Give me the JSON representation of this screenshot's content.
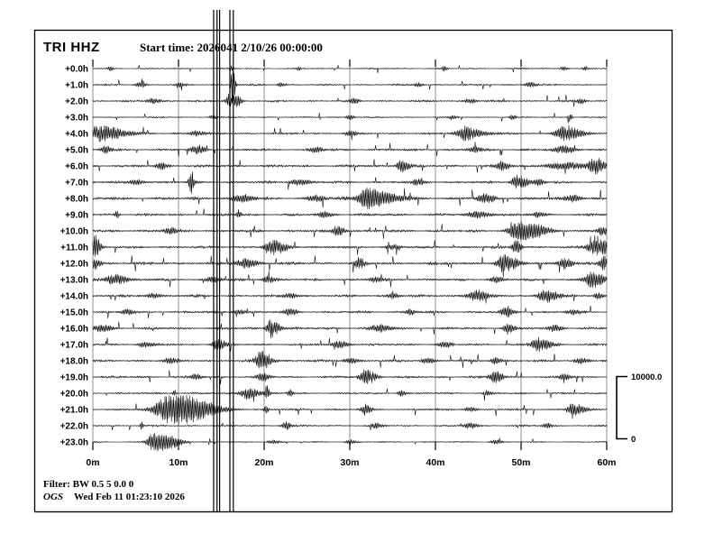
{
  "header": {
    "station_label": "TRI HHZ",
    "start_time_label": "Start time: 2026041 2/10/26 00:00:00"
  },
  "footer": {
    "filter_label": "Filter: BW 0.5 5 0.0 0",
    "agency_label": "OGS",
    "timestamp_label": "Wed Feb 11 01:23:10 2026"
  },
  "colors": {
    "trace": "#000000",
    "grid": "#8f8f8f",
    "frame": "#000000",
    "background": "#ffffff"
  },
  "chart_data": {
    "type": "line",
    "subtype": "helicorder-seismogram",
    "title": "TRI HHZ",
    "start_time": "2026041 2/10/26 00:00:00",
    "x_tick_labels": [
      "0m",
      "10m",
      "20m",
      "30m",
      "40m",
      "50m",
      "60m"
    ],
    "x_tick_positions_minutes": [
      0,
      10,
      20,
      30,
      40,
      50,
      60
    ],
    "x_range_minutes": [
      0,
      60
    ],
    "minutes_per_row": 60,
    "grid": "vertical gray lines every 10 minutes",
    "legend_position": "none",
    "amplitude_scale_bar": {
      "max_label": "10000.0",
      "min_label": "0"
    },
    "clipped_event_lines_minutes": [
      14.1,
      14.5,
      14.8,
      16.0,
      16.4
    ],
    "events_format": "[minute, peak_amplitude_px, gaussian_width_min]",
    "rows": [
      {
        "label": "+0.0h",
        "noise": 0.8,
        "events": [
          [
            2.0,
            2.5,
            0.2
          ],
          [
            16.2,
            3,
            0.15
          ],
          [
            24,
            2,
            0.2
          ],
          [
            41,
            2.5,
            0.2
          ],
          [
            55,
            2.5,
            0.3
          ],
          [
            57.5,
            2.5,
            0.2
          ]
        ]
      },
      {
        "label": "+1.0h",
        "noise": 1.0,
        "events": [
          [
            5.5,
            3,
            0.4
          ],
          [
            10.2,
            2.5,
            0.3
          ],
          [
            16.3,
            22,
            0.12
          ],
          [
            22,
            2.5,
            0.3
          ],
          [
            38,
            2.5,
            0.3
          ],
          [
            51,
            3,
            0.4
          ]
        ]
      },
      {
        "label": "+2.0h",
        "noise": 1.1,
        "events": [
          [
            7,
            3,
            0.5
          ],
          [
            16.1,
            6,
            0.45
          ],
          [
            16.9,
            5,
            0.25
          ],
          [
            30.5,
            3.5,
            0.3
          ],
          [
            44,
            3,
            0.4
          ],
          [
            57,
            3,
            0.3
          ]
        ]
      },
      {
        "label": "+3.0h",
        "noise": 0.85,
        "events": [
          [
            14,
            2.5,
            0.3
          ],
          [
            30,
            3,
            0.3
          ],
          [
            42,
            2.5,
            0.3
          ],
          [
            49,
            3,
            0.25
          ],
          [
            55.7,
            6,
            0.15
          ]
        ]
      },
      {
        "label": "+4.0h",
        "noise": 1.2,
        "events": [
          [
            0.8,
            9,
            1.1
          ],
          [
            12,
            3,
            0.5
          ],
          [
            30,
            3.5,
            0.4
          ],
          [
            43.5,
            8,
            0.8
          ],
          [
            55.0,
            9,
            0.7
          ]
        ]
      },
      {
        "label": "+5.0h",
        "noise": 1.3,
        "events": [
          [
            1.5,
            4,
            0.4
          ],
          [
            12.2,
            5,
            0.5
          ],
          [
            26,
            3,
            0.5
          ],
          [
            44.5,
            3.5,
            0.5
          ],
          [
            55,
            4,
            0.8
          ]
        ]
      },
      {
        "label": "+6.0h",
        "noise": 1.4,
        "events": [
          [
            8,
            3.5,
            0.5
          ],
          [
            36.0,
            8,
            0.35
          ],
          [
            47.8,
            5,
            0.5
          ],
          [
            55,
            4,
            1.5
          ],
          [
            58.5,
            9,
            0.45
          ]
        ]
      },
      {
        "label": "+7.0h",
        "noise": 1.4,
        "events": [
          [
            5,
            3.5,
            0.5
          ],
          [
            11.4,
            14,
            0.15
          ],
          [
            24,
            3.5,
            0.7
          ],
          [
            38,
            3,
            0.5
          ],
          [
            49.5,
            8,
            0.45
          ],
          [
            52,
            4,
            0.4
          ]
        ]
      },
      {
        "label": "+8.0h",
        "noise": 1.6,
        "events": [
          [
            17.5,
            4,
            0.8
          ],
          [
            26,
            3.5,
            0.6
          ],
          [
            31.8,
            8,
            0.5
          ],
          [
            33.2,
            7,
            1.6
          ],
          [
            45.8,
            5,
            0.6
          ],
          [
            56,
            4,
            0.6
          ]
        ]
      },
      {
        "label": "+9.0h",
        "noise": 1.4,
        "events": [
          [
            2.8,
            5,
            0.15
          ],
          [
            17.0,
            5,
            0.18
          ],
          [
            27,
            3,
            0.6
          ],
          [
            45,
            3.5,
            0.9
          ],
          [
            52,
            3,
            0.5
          ]
        ]
      },
      {
        "label": "+10.0h",
        "noise": 1.5,
        "events": [
          [
            9,
            3.5,
            0.5
          ],
          [
            28.6,
            6,
            0.45
          ],
          [
            49.5,
            9,
            0.7
          ],
          [
            51.5,
            6,
            1.0
          ],
          [
            59.5,
            5,
            0.4
          ]
        ]
      },
      {
        "label": "+11.0h",
        "noise": 1.4,
        "events": [
          [
            0.2,
            15,
            0.22
          ],
          [
            21.0,
            8,
            0.6
          ],
          [
            35,
            3,
            0.5
          ],
          [
            49.3,
            9,
            0.25
          ],
          [
            58.8,
            9,
            0.8
          ]
        ]
      },
      {
        "label": "+12.0h",
        "noise": 1.6,
        "events": [
          [
            0.3,
            7,
            0.3
          ],
          [
            17.8,
            5,
            0.8
          ],
          [
            31.0,
            6,
            0.35
          ],
          [
            48.0,
            10,
            0.55
          ],
          [
            55.0,
            7,
            0.5
          ],
          [
            59.6,
            8,
            0.35
          ]
        ]
      },
      {
        "label": "+13.0h",
        "noise": 1.4,
        "events": [
          [
            2.6,
            6,
            0.8
          ],
          [
            14,
            3.5,
            0.5
          ],
          [
            20.5,
            4,
            0.5
          ],
          [
            33,
            3,
            0.5
          ],
          [
            47,
            3.5,
            0.5
          ],
          [
            58.2,
            10,
            0.55
          ]
        ]
      },
      {
        "label": "+14.0h",
        "noise": 1.4,
        "events": [
          [
            7,
            3,
            0.5
          ],
          [
            23,
            3,
            0.5
          ],
          [
            35,
            3.5,
            0.4
          ],
          [
            44.8,
            7,
            0.7
          ],
          [
            52.8,
            8,
            0.55
          ],
          [
            59,
            4,
            0.3
          ]
        ]
      },
      {
        "label": "+15.0h",
        "noise": 1.3,
        "events": [
          [
            4,
            3,
            0.5
          ],
          [
            17,
            3,
            0.5
          ],
          [
            23,
            3.5,
            0.5
          ],
          [
            37,
            3,
            0.4
          ],
          [
            48.3,
            6,
            0.45
          ],
          [
            56,
            3,
            0.5
          ]
        ]
      },
      {
        "label": "+16.0h",
        "noise": 1.4,
        "events": [
          [
            1,
            4,
            0.7
          ],
          [
            20.8,
            11,
            0.35
          ],
          [
            33.5,
            4,
            0.7
          ],
          [
            48.5,
            6,
            0.4
          ],
          [
            54,
            3.5,
            0.5
          ]
        ]
      },
      {
        "label": "+17.0h",
        "noise": 1.3,
        "events": [
          [
            6,
            3,
            0.5
          ],
          [
            14.6,
            7,
            0.45
          ],
          [
            28.8,
            4,
            0.6
          ],
          [
            41,
            3,
            0.5
          ],
          [
            52.0,
            8,
            0.55
          ]
        ]
      },
      {
        "label": "+18.0h",
        "noise": 1.3,
        "events": [
          [
            9,
            3,
            0.5
          ],
          [
            19.6,
            12,
            0.45
          ],
          [
            30,
            3,
            0.5
          ],
          [
            39,
            3.5,
            0.5
          ],
          [
            47,
            3.5,
            0.4
          ],
          [
            57,
            3,
            0.5
          ]
        ]
      },
      {
        "label": "+19.0h",
        "noise": 1.3,
        "events": [
          [
            12,
            3,
            0.4
          ],
          [
            19.8,
            5,
            0.45
          ],
          [
            31.8,
            9,
            0.45
          ],
          [
            47.0,
            7,
            0.5
          ],
          [
            55,
            4,
            0.4
          ]
        ]
      },
      {
        "label": "+20.0h",
        "noise": 1.1,
        "events": [
          [
            9.5,
            4,
            0.15
          ],
          [
            18.2,
            7,
            0.7
          ],
          [
            20.3,
            9,
            0.13
          ],
          [
            23,
            4,
            0.2
          ],
          [
            36,
            3.5,
            0.3
          ],
          [
            46,
            3,
            0.3
          ]
        ]
      },
      {
        "label": "+21.0h",
        "noise": 1.2,
        "events": [
          [
            9.0,
            16,
            1.2
          ],
          [
            12.3,
            7,
            1.6
          ],
          [
            20.2,
            6,
            0.15
          ],
          [
            31.8,
            6,
            0.35
          ],
          [
            44,
            3,
            0.4
          ],
          [
            56.0,
            8,
            0.45
          ]
        ]
      },
      {
        "label": "+22.0h",
        "noise": 1.0,
        "events": [
          [
            5.7,
            5,
            0.13
          ],
          [
            22.5,
            5,
            0.35
          ],
          [
            33,
            3,
            0.4
          ],
          [
            44,
            3.5,
            0.5
          ],
          [
            53,
            3,
            0.4
          ]
        ]
      },
      {
        "label": "+23.0h",
        "noise": 0.75,
        "events": [
          [
            7.2,
            11,
            0.6
          ],
          [
            9.2,
            6,
            0.8
          ],
          [
            21,
            2.5,
            0.4
          ],
          [
            30,
            2.5,
            0.4
          ],
          [
            47,
            2.5,
            0.4
          ]
        ]
      }
    ]
  }
}
